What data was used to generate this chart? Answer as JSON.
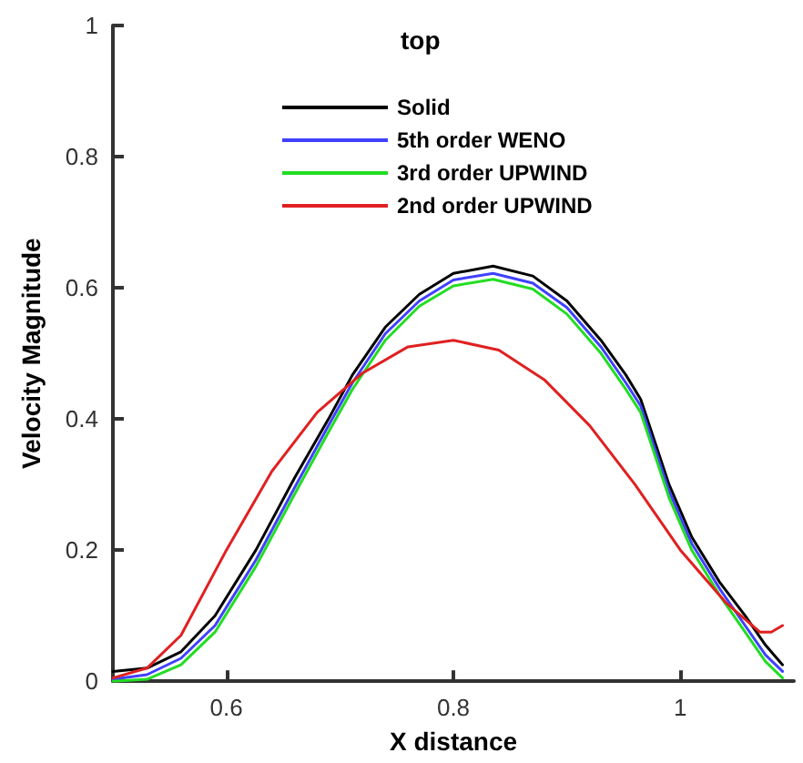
{
  "chart_data": {
    "type": "line",
    "title": "top",
    "xlabel": "X distance",
    "ylabel": "Velocity Magnitude",
    "xlim": [
      0.5,
      1.1
    ],
    "xticks": [
      0.6,
      0.8,
      1
    ],
    "ylim": [
      0,
      1
    ],
    "yticks": [
      0,
      0.2,
      0.4,
      0.6,
      0.8,
      1
    ],
    "grid": false,
    "legend": "top",
    "marker": "none",
    "line_style": "solid",
    "series": [
      {
        "name": "Solid",
        "color": "#000000",
        "x": [
          0.5,
          0.53,
          0.56,
          0.59,
          0.626,
          0.66,
          0.69,
          0.711,
          0.74,
          0.77,
          0.8,
          0.835,
          0.87,
          0.9,
          0.93,
          0.952,
          0.965,
          0.99,
          1.01,
          1.035,
          1.057,
          1.075,
          1.09
        ],
        "values": [
          0.015,
          0.02,
          0.045,
          0.1,
          0.2,
          0.31,
          0.4,
          0.467,
          0.54,
          0.59,
          0.622,
          0.633,
          0.618,
          0.58,
          0.52,
          0.467,
          0.43,
          0.3,
          0.22,
          0.15,
          0.1,
          0.055,
          0.025
        ]
      },
      {
        "name": "5th order WENO",
        "color": "#4040ff",
        "x": [
          0.5,
          0.53,
          0.56,
          0.59,
          0.626,
          0.66,
          0.69,
          0.711,
          0.74,
          0.77,
          0.8,
          0.835,
          0.87,
          0.9,
          0.93,
          0.952,
          0.965,
          0.99,
          1.01,
          1.035,
          1.057,
          1.075,
          1.09
        ],
        "values": [
          0.003,
          0.01,
          0.035,
          0.085,
          0.185,
          0.295,
          0.39,
          0.455,
          0.53,
          0.58,
          0.612,
          0.622,
          0.607,
          0.57,
          0.51,
          0.455,
          0.42,
          0.29,
          0.21,
          0.14,
          0.085,
          0.04,
          0.015
        ]
      },
      {
        "name": "3rd order UPWIND",
        "color": "#22dd22",
        "x": [
          0.5,
          0.53,
          0.56,
          0.59,
          0.626,
          0.66,
          0.69,
          0.711,
          0.74,
          0.77,
          0.8,
          0.835,
          0.87,
          0.9,
          0.93,
          0.952,
          0.965,
          0.99,
          1.01,
          1.035,
          1.057,
          1.075,
          1.09
        ],
        "values": [
          0,
          0.003,
          0.025,
          0.075,
          0.175,
          0.285,
          0.38,
          0.445,
          0.52,
          0.572,
          0.603,
          0.613,
          0.598,
          0.56,
          0.5,
          0.445,
          0.41,
          0.28,
          0.2,
          0.13,
          0.075,
          0.03,
          0.005
        ]
      },
      {
        "name": "2nd order UPWIND",
        "color": "#e02020",
        "x": [
          0.5,
          0.53,
          0.56,
          0.6,
          0.64,
          0.68,
          0.72,
          0.76,
          0.8,
          0.84,
          0.88,
          0.92,
          0.96,
          1.0,
          1.04,
          1.07,
          1.08,
          1.09
        ],
        "values": [
          0.005,
          0.02,
          0.07,
          0.2,
          0.32,
          0.41,
          0.47,
          0.51,
          0.52,
          0.505,
          0.46,
          0.39,
          0.3,
          0.2,
          0.12,
          0.075,
          0.075,
          0.085
        ]
      }
    ]
  }
}
